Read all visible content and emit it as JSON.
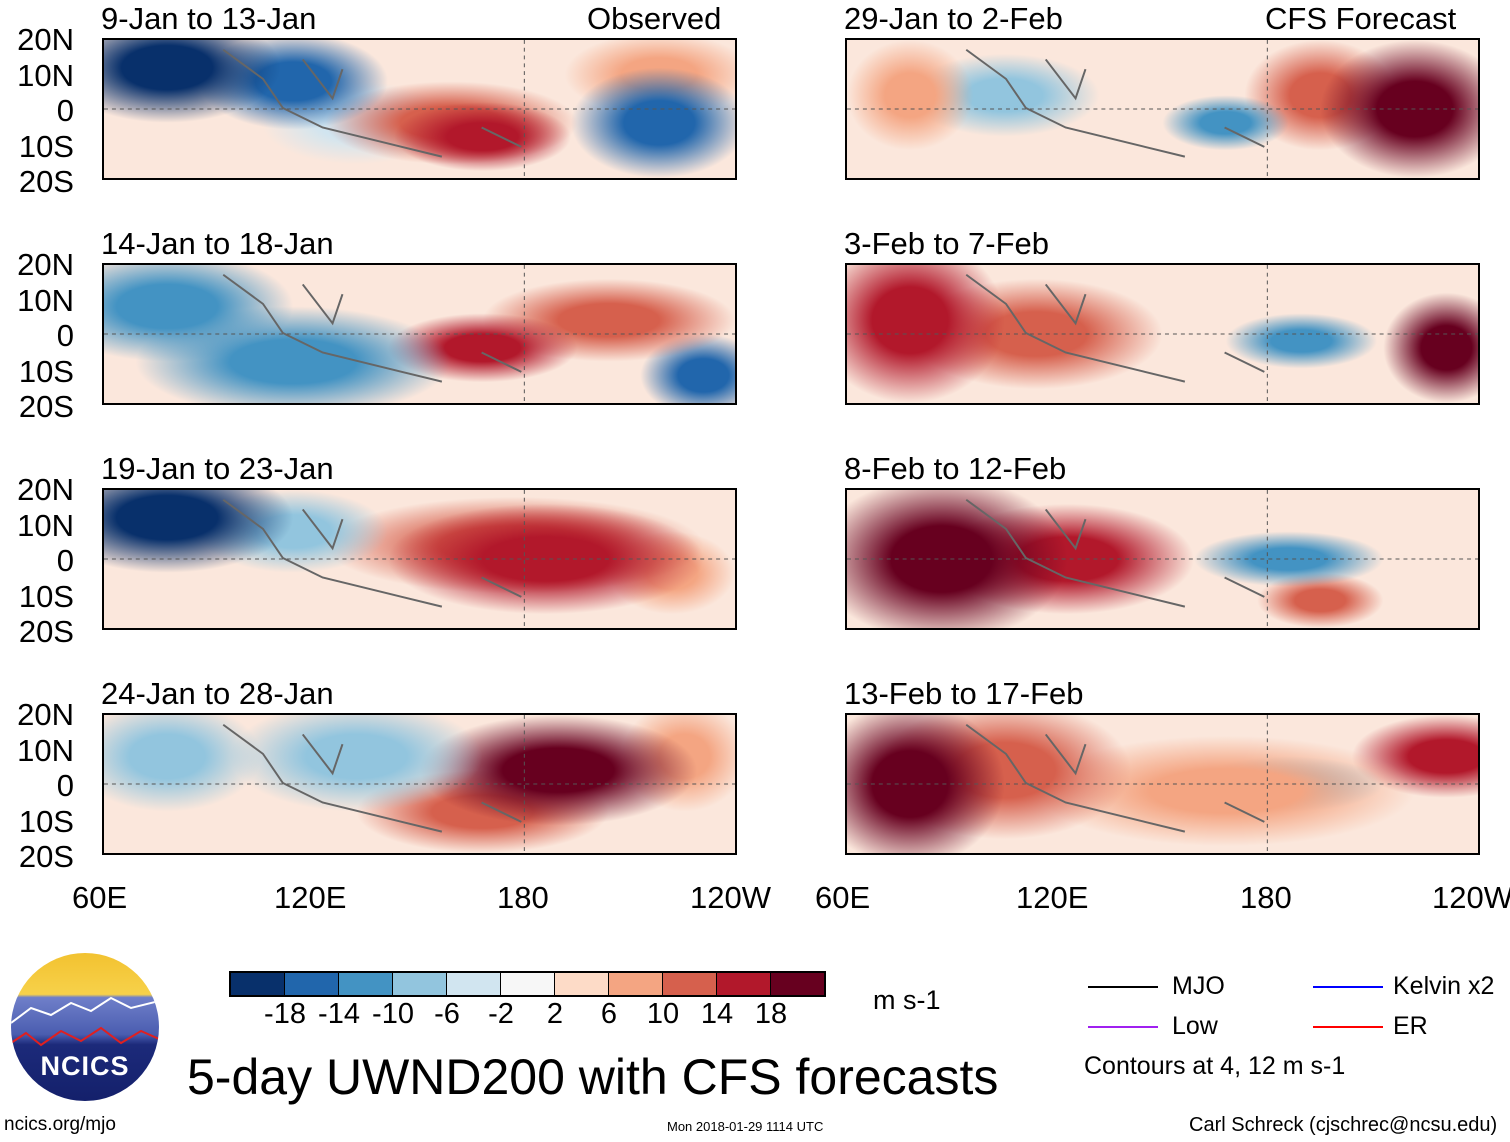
{
  "left_header": "Observed",
  "right_header": "CFS Forecast",
  "panels_left": [
    "9-Jan to 13-Jan",
    "14-Jan to 18-Jan",
    "19-Jan to 23-Jan",
    "24-Jan to 28-Jan"
  ],
  "panels_right": [
    "29-Jan to 2-Feb",
    "3-Feb to 7-Feb",
    "8-Feb to 12-Feb",
    "13-Feb to 17-Feb"
  ],
  "lat_labels": [
    "20N",
    "10N",
    "0",
    "10S",
    "20S"
  ],
  "lon_labels": [
    "60E",
    "120E",
    "180",
    "120W"
  ],
  "colorbar": {
    "labels": [
      "-18",
      "-14",
      "-10",
      "-6",
      "-2",
      "2",
      "6",
      "10",
      "14",
      "18"
    ],
    "colors": [
      "#08306b",
      "#2166ac",
      "#4393c3",
      "#92c5de",
      "#d1e5f0",
      "#f7f7f7",
      "#fddbc7",
      "#f4a582",
      "#d6604d",
      "#b2182b",
      "#67001f"
    ],
    "units": "m s-1"
  },
  "legend": {
    "items": [
      {
        "label": "MJO",
        "color": "#000000"
      },
      {
        "label": "Kelvin x2",
        "color": "#0000ff"
      },
      {
        "label": "Low",
        "color": "#a020f0"
      },
      {
        "label": "ER",
        "color": "#ff0000"
      }
    ],
    "contours": "Contours at 4, 12 m s-1"
  },
  "logo": "NCICS",
  "title": "5-day UWND200 with CFS forecasts",
  "footer": {
    "url": "ncics.org/mjo",
    "timestamp": "Mon 2018-01-29 1114 UTC",
    "author": "Carl Schreck (cjschrec@ncsu.edu)"
  }
}
